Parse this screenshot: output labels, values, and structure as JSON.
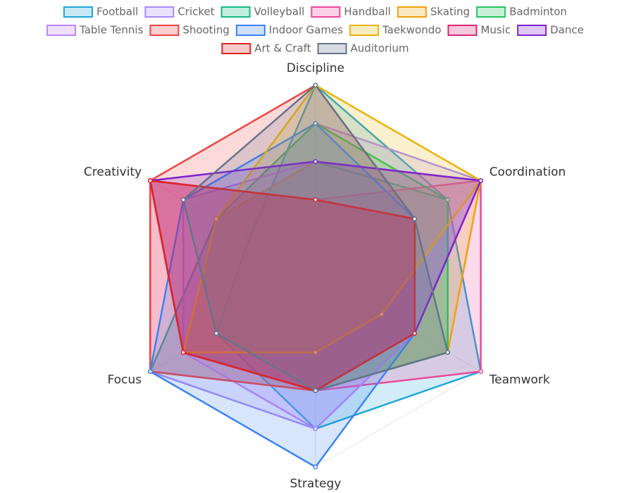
{
  "chart_data": {
    "type": "radar",
    "categories": [
      "Discipline",
      "Coordination",
      "Teamwork",
      "Strategy",
      "Focus",
      "Creativity"
    ],
    "rlim": [
      0,
      5
    ],
    "series": [
      {
        "name": "Football",
        "color": "#1ea7d8",
        "values": [
          5,
          4,
          5,
          4,
          3,
          2
        ]
      },
      {
        "name": "Cricket",
        "color": "#a78bfa",
        "values": [
          4,
          5,
          3,
          4,
          5,
          3
        ]
      },
      {
        "name": "Volleyball",
        "color": "#10b981",
        "values": [
          3,
          4,
          4,
          3,
          5,
          3
        ]
      },
      {
        "name": "Handball",
        "color": "#ec4899",
        "values": [
          2,
          5,
          5,
          3,
          5,
          5
        ]
      },
      {
        "name": "Skating",
        "color": "#f0a20b",
        "values": [
          3,
          5,
          4,
          3,
          4,
          3
        ]
      },
      {
        "name": "Badminton",
        "color": "#22c55e",
        "values": [
          4,
          4,
          4,
          3,
          4,
          3
        ]
      },
      {
        "name": "Table Tennis",
        "color": "#c084fc",
        "values": [
          3,
          5,
          3,
          4,
          4,
          4
        ]
      },
      {
        "name": "Shooting",
        "color": "#ef4444",
        "values": [
          5,
          3,
          3,
          3,
          5,
          5
        ]
      },
      {
        "name": "Indoor Games",
        "color": "#3b82f6",
        "values": [
          4,
          3,
          3,
          5,
          5,
          4
        ]
      },
      {
        "name": "Taekwondo",
        "color": "#eab308",
        "values": [
          5,
          5,
          2,
          2,
          4,
          3
        ]
      },
      {
        "name": "Music",
        "color": "#db2777",
        "values": [
          2,
          3,
          3,
          3,
          4,
          5
        ]
      },
      {
        "name": "Dance",
        "color": "#7e22ce",
        "values": [
          3,
          5,
          3,
          3,
          4,
          5
        ]
      },
      {
        "name": "Art & Craft",
        "color": "#dc2626",
        "values": [
          2,
          3,
          3,
          3,
          4,
          5
        ]
      },
      {
        "name": "Auditorium",
        "color": "#64748b",
        "values": [
          5,
          3,
          4,
          3,
          3,
          4
        ]
      }
    ]
  }
}
